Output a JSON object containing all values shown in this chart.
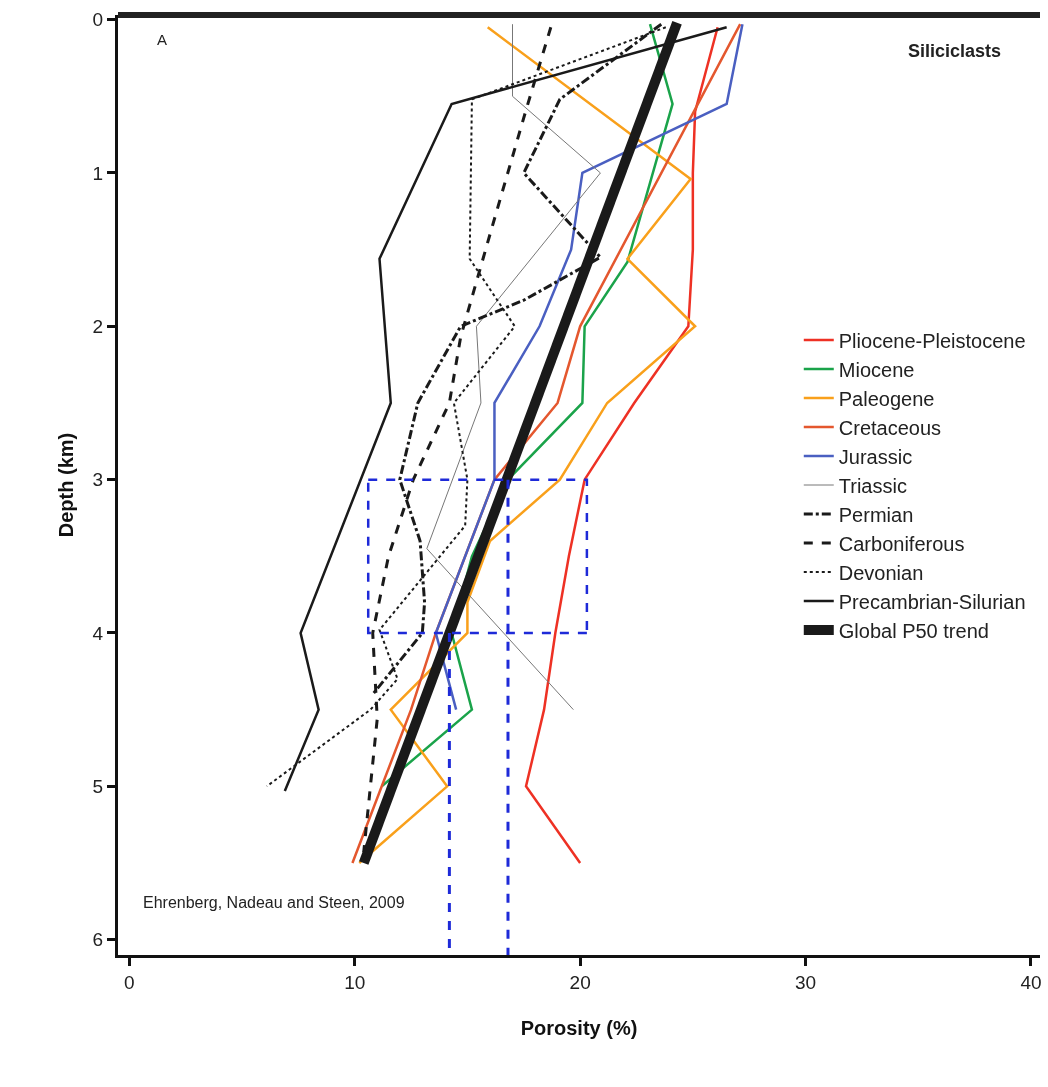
{
  "chart_data": {
    "type": "line",
    "xlabel": "Porosity (%)",
    "ylabel": "Depth (km)",
    "xlim": [
      -0.5,
      40.4
    ],
    "xticks": [
      0,
      10,
      20,
      30,
      40
    ],
    "ylim": [
      6.1,
      -0.03
    ],
    "yticks": [
      0,
      1,
      2,
      3,
      4,
      5,
      6
    ],
    "grid": false,
    "legend": "right",
    "marker": "none",
    "annotations": [
      "A",
      "Siliciclasts",
      "Ehrenberg, Nadeau and Steen, 2009"
    ],
    "series": [
      {
        "name": "Pliocene-Pleistocene",
        "color": "#ee3124",
        "line_style": "solid",
        "x": [
          26.1,
          25.1,
          25.0,
          25.0,
          24.8,
          22.4,
          20.2,
          19.5,
          18.9,
          18.4,
          17.6,
          20.0
        ],
        "values": [
          0.05,
          0.6,
          1,
          1.5,
          2,
          2.5,
          3,
          3.5,
          4,
          4.5,
          5,
          5.5
        ]
      },
      {
        "name": "Miocene",
        "color": "#1aa34a",
        "line_style": "solid",
        "x": [
          23.1,
          24.1,
          22.1,
          20.2,
          20.1,
          16.8,
          15.2,
          14.3,
          15.2,
          11.2
        ],
        "values": [
          0.03,
          0.55,
          1.58,
          2,
          2.5,
          3,
          3.5,
          4,
          4.5,
          5
        ]
      },
      {
        "name": "Paleogene",
        "color": "#f9a01b",
        "line_style": "solid",
        "x": [
          15.9,
          24.9,
          22.1,
          25.1,
          21.2,
          19.1,
          16.0,
          15.0,
          15.0,
          11.6,
          14.1,
          10.2
        ],
        "values": [
          0.05,
          1.04,
          1.56,
          2,
          2.5,
          3,
          3.4,
          3.8,
          4,
          4.5,
          5,
          5.5
        ]
      },
      {
        "name": "Cretaceous",
        "color": "#e4572e",
        "line_style": "solid",
        "x": [
          27.1,
          20.0,
          19.0,
          16.2,
          13.6,
          12.5,
          11.2,
          9.9
        ],
        "values": [
          0.03,
          2,
          2.5,
          3,
          4,
          4.5,
          5,
          5.5
        ]
      },
      {
        "name": "Jurassic",
        "color": "#4a5fc1",
        "line_style": "solid",
        "x": [
          27.2,
          26.5,
          20.1,
          19.6,
          18.2,
          16.2,
          16.2,
          13.6,
          14.5
        ],
        "values": [
          0.03,
          0.55,
          1,
          1.5,
          2,
          2.5,
          3,
          4,
          4.5
        ]
      },
      {
        "name": "Triassic",
        "color": "#777777",
        "line_style": "solid",
        "x": [
          17.0,
          17.0,
          20.9,
          15.4,
          15.6,
          13.2,
          19.7
        ],
        "values": [
          0.03,
          0.5,
          1,
          2,
          2.5,
          3.45,
          4.5
        ]
      },
      {
        "name": "Permian",
        "color": "#1a1a1a",
        "line_style": "dashdot",
        "x": [
          23.6,
          19.1,
          17.5,
          20.9,
          17.5,
          14.7,
          12.8,
          12.0,
          12.9,
          13.1,
          13.0,
          10.8
        ],
        "values": [
          0.03,
          0.52,
          1,
          1.55,
          1.83,
          2,
          2.5,
          3,
          3.4,
          3.8,
          4,
          4.4
        ]
      },
      {
        "name": "Carboniferous",
        "color": "#1a1a1a",
        "line_style": "dashed",
        "x": [
          18.7,
          17.6,
          16.1,
          14.7,
          14.2,
          12.6,
          11.5,
          10.8,
          11.0,
          10.4
        ],
        "values": [
          0.05,
          0.59,
          1.35,
          2.07,
          2.5,
          3,
          3.5,
          4,
          4.56,
          5.43
        ]
      },
      {
        "name": "Devonian",
        "color": "#1a1a1a",
        "line_style": "dotted",
        "x": [
          23.8,
          15.2,
          15.1,
          17.1,
          14.4,
          15.0,
          14.9,
          11.1,
          11.9,
          10.7,
          6.1
        ],
        "values": [
          0.05,
          0.52,
          1.56,
          2,
          2.5,
          3,
          3.3,
          3.98,
          4.3,
          4.5,
          5
        ]
      },
      {
        "name": "Precambrian-Silurian",
        "color": "#1a1a1a",
        "line_style": "solid",
        "x": [
          26.5,
          14.3,
          11.1,
          11.6,
          7.6,
          8.4,
          6.9
        ],
        "values": [
          0.05,
          0.55,
          1.56,
          2.5,
          4,
          4.5,
          5.03
        ]
      },
      {
        "name": "Global P50 trend",
        "color": "#1a1a1a",
        "line_style": "solid",
        "x": [
          24.3,
          10.4
        ],
        "values": [
          0.02,
          5.5
        ]
      },
      {
        "color": "#1e2ad8",
        "line_style": "dashed",
        "x": [
          10.6,
          20.3,
          20.3,
          null,
          20.3,
          10.6,
          10.6
        ],
        "values": [
          3,
          3,
          4,
          null,
          4,
          4,
          3
        ]
      },
      {
        "color": "#1e2ad8",
        "line_style": "dashed",
        "x": [
          14.2,
          14.2
        ],
        "values": [
          4,
          6.1
        ]
      },
      {
        "color": "#1e2ad8",
        "line_style": "dashed",
        "x": [
          16.8,
          16.8
        ],
        "values": [
          3,
          6.1
        ]
      }
    ]
  }
}
